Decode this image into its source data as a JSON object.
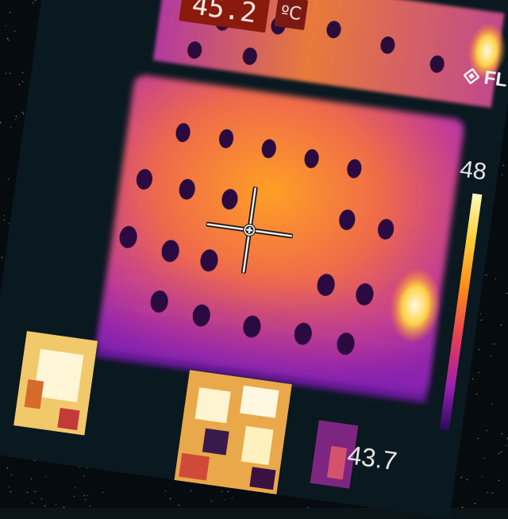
{
  "readout": {
    "value": "45.2",
    "unit": "ºC"
  },
  "brand": {
    "text": "FL",
    "icon": "flir-diamond-logo-icon"
  },
  "scale": {
    "max_label": "48",
    "min_label": "43.7"
  },
  "icons": {
    "crosshair": "crosshair-icon"
  },
  "palette": {
    "hot": "#fff3b0",
    "warm": "#ff9a1f",
    "mid": "#e25a7a",
    "cool": "#9a2cc4",
    "cold": "#0a1820"
  }
}
